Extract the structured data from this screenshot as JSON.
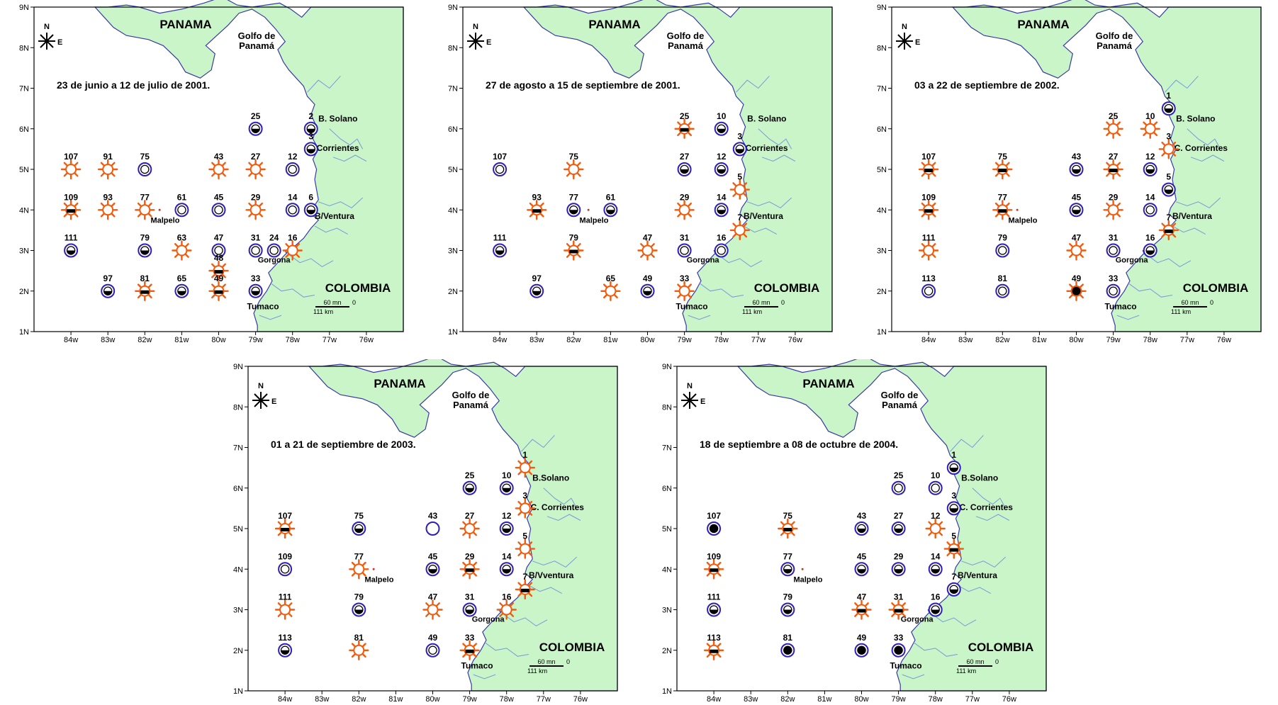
{
  "colors": {
    "land": "#c9f5c9",
    "coast": "#3a3aa8",
    "river": "#7a9ad8",
    "sun": "#f25a0c",
    "circle": "#2d1fb8",
    "frame": "#000000"
  },
  "axes": {
    "lat_labels": [
      "1N",
      "2N",
      "3N",
      "4N",
      "5N",
      "6N",
      "7N",
      "8N",
      "9N"
    ],
    "lon_labels": [
      "84w",
      "83w",
      "82w",
      "81w",
      "80w",
      "79w",
      "78w",
      "77w",
      "76w"
    ]
  },
  "places": {
    "panama": "PANAMA",
    "golfo": "Golfo de",
    "panama_gulf": "Panamá",
    "colombia": "COLOMBIA",
    "malpelo": "Malpelo",
    "gorgona": "Gorgona",
    "tumaco": "Tumaco"
  },
  "compass": {
    "north": "N",
    "east": "E"
  },
  "scale": {
    "nm": "60 mn",
    "zero": "0",
    "km": "111 km"
  },
  "legend_icons": {
    "sun": "sun-icon",
    "circle_empty": "empty-circle-icon",
    "circle_half": "half-filled-circle-icon",
    "circle_full": "filled-circle-icon"
  },
  "panels": [
    {
      "title": "23 de junio a 12 de julio de 2001.",
      "coast_labels": {
        "north": "B. Solano",
        "mid": "Corrientes",
        "south": "B/Ventura"
      },
      "stations": [
        {
          "id": "25",
          "lon": -79,
          "lat": 6,
          "type": "c1"
        },
        {
          "id": "2",
          "lon": -77.5,
          "lat": 6,
          "type": "c1"
        },
        {
          "id": "3",
          "lon": -77.5,
          "lat": 5.5,
          "type": "c1"
        },
        {
          "id": "107",
          "lon": -84,
          "lat": 5,
          "type": "sun"
        },
        {
          "id": "91",
          "lon": -83,
          "lat": 5,
          "type": "sun"
        },
        {
          "id": "75",
          "lon": -82,
          "lat": 5,
          "type": "c0"
        },
        {
          "id": "43",
          "lon": -80,
          "lat": 5,
          "type": "sun"
        },
        {
          "id": "27",
          "lon": -79,
          "lat": 5,
          "type": "sun"
        },
        {
          "id": "12",
          "lon": -78,
          "lat": 5,
          "type": "c0"
        },
        {
          "id": "109",
          "lon": -84,
          "lat": 4,
          "type": "sunc"
        },
        {
          "id": "93",
          "lon": -83,
          "lat": 4,
          "type": "sun"
        },
        {
          "id": "77",
          "lon": -82,
          "lat": 4,
          "type": "sun"
        },
        {
          "id": "61",
          "lon": -81,
          "lat": 4,
          "type": "c0"
        },
        {
          "id": "45",
          "lon": -80,
          "lat": 4,
          "type": "c0"
        },
        {
          "id": "29",
          "lon": -79,
          "lat": 4,
          "type": "sun"
        },
        {
          "id": "14",
          "lon": -78,
          "lat": 4,
          "type": "c0"
        },
        {
          "id": "6",
          "lon": -77.5,
          "lat": 4,
          "type": "c1"
        },
        {
          "id": "111",
          "lon": -84,
          "lat": 3,
          "type": "c1"
        },
        {
          "id": "79",
          "lon": -82,
          "lat": 3,
          "type": "c1"
        },
        {
          "id": "63",
          "lon": -81,
          "lat": 3,
          "type": "sun"
        },
        {
          "id": "47",
          "lon": -80,
          "lat": 3,
          "type": "c0"
        },
        {
          "id": "31",
          "lon": -79,
          "lat": 3,
          "type": "c0"
        },
        {
          "id": "24",
          "lon": -78.5,
          "lat": 3,
          "type": "c0"
        },
        {
          "id": "16",
          "lon": -78,
          "lat": 3,
          "type": "sun"
        },
        {
          "id": "48",
          "lon": -80,
          "lat": 2.5,
          "type": "sunc"
        },
        {
          "id": "97",
          "lon": -83,
          "lat": 2,
          "type": "c1"
        },
        {
          "id": "81",
          "lon": -82,
          "lat": 2,
          "type": "sunc"
        },
        {
          "id": "65",
          "lon": -81,
          "lat": 2,
          "type": "c1"
        },
        {
          "id": "49",
          "lon": -80,
          "lat": 2,
          "type": "sunc"
        },
        {
          "id": "33",
          "lon": -79,
          "lat": 2,
          "type": "c1"
        }
      ]
    },
    {
      "title": "27 de agosto a 15 de septiembre de 2001.",
      "coast_labels": {
        "north": "B. Solano",
        "mid": "Corrientes",
        "south": "B/Ventura"
      },
      "stations": [
        {
          "id": "25",
          "lon": -79,
          "lat": 6,
          "type": "sunc"
        },
        {
          "id": "10",
          "lon": -78,
          "lat": 6,
          "type": "c1"
        },
        {
          "id": "3",
          "lon": -77.5,
          "lat": 5.5,
          "type": "c1"
        },
        {
          "id": "107",
          "lon": -84,
          "lat": 5,
          "type": "c0"
        },
        {
          "id": "75",
          "lon": -82,
          "lat": 5,
          "type": "sun"
        },
        {
          "id": "27",
          "lon": -79,
          "lat": 5,
          "type": "c1"
        },
        {
          "id": "12",
          "lon": -78,
          "lat": 5,
          "type": "c1"
        },
        {
          "id": "5",
          "lon": -77.5,
          "lat": 4.5,
          "type": "sun"
        },
        {
          "id": "93",
          "lon": -83,
          "lat": 4,
          "type": "sunc"
        },
        {
          "id": "77",
          "lon": -82,
          "lat": 4,
          "type": "c1"
        },
        {
          "id": "61",
          "lon": -81,
          "lat": 4,
          "type": "c1"
        },
        {
          "id": "29",
          "lon": -79,
          "lat": 4,
          "type": "sun"
        },
        {
          "id": "14",
          "lon": -78,
          "lat": 4,
          "type": "c1"
        },
        {
          "id": "7",
          "lon": -77.5,
          "lat": 3.5,
          "type": "sun"
        },
        {
          "id": "111",
          "lon": -84,
          "lat": 3,
          "type": "c1"
        },
        {
          "id": "79",
          "lon": -82,
          "lat": 3,
          "type": "sunc"
        },
        {
          "id": "47",
          "lon": -80,
          "lat": 3,
          "type": "sun"
        },
        {
          "id": "31",
          "lon": -79,
          "lat": 3,
          "type": "c0"
        },
        {
          "id": "16",
          "lon": -78,
          "lat": 3,
          "type": "c0"
        },
        {
          "id": "97",
          "lon": -83,
          "lat": 2,
          "type": "c1"
        },
        {
          "id": "65",
          "lon": -81,
          "lat": 2,
          "type": "sun"
        },
        {
          "id": "49",
          "lon": -80,
          "lat": 2,
          "type": "c1"
        },
        {
          "id": "33",
          "lon": -79,
          "lat": 2,
          "type": "sun"
        }
      ]
    },
    {
      "title": "03 a 22 de septiembre de 2002.",
      "coast_labels": {
        "north": "B. Solano",
        "mid": "C. Corrientes",
        "south": "B/Ventura"
      },
      "stations": [
        {
          "id": "1",
          "lon": -77.5,
          "lat": 6.5,
          "type": "c1"
        },
        {
          "id": "25",
          "lon": -79,
          "lat": 6,
          "type": "sun"
        },
        {
          "id": "10",
          "lon": -78,
          "lat": 6,
          "type": "sun"
        },
        {
          "id": "3",
          "lon": -77.5,
          "lat": 5.5,
          "type": "sun"
        },
        {
          "id": "107",
          "lon": -84,
          "lat": 5,
          "type": "sunc"
        },
        {
          "id": "75",
          "lon": -82,
          "lat": 5,
          "type": "sunc"
        },
        {
          "id": "43",
          "lon": -80,
          "lat": 5,
          "type": "c1"
        },
        {
          "id": "27",
          "lon": -79,
          "lat": 5,
          "type": "sunc"
        },
        {
          "id": "12",
          "lon": -78,
          "lat": 5,
          "type": "c1"
        },
        {
          "id": "5",
          "lon": -77.5,
          "lat": 4.5,
          "type": "c1"
        },
        {
          "id": "109",
          "lon": -84,
          "lat": 4,
          "type": "sunc"
        },
        {
          "id": "77",
          "lon": -82,
          "lat": 4,
          "type": "sunc"
        },
        {
          "id": "45",
          "lon": -80,
          "lat": 4,
          "type": "c1"
        },
        {
          "id": "29",
          "lon": -79,
          "lat": 4,
          "type": "sun"
        },
        {
          "id": "14",
          "lon": -78,
          "lat": 4,
          "type": "c0"
        },
        {
          "id": "7",
          "lon": -77.5,
          "lat": 3.5,
          "type": "sunc"
        },
        {
          "id": "111",
          "lon": -84,
          "lat": 3,
          "type": "sun"
        },
        {
          "id": "79",
          "lon": -82,
          "lat": 3,
          "type": "c0"
        },
        {
          "id": "47",
          "lon": -80,
          "lat": 3,
          "type": "sun"
        },
        {
          "id": "31",
          "lon": -79,
          "lat": 3,
          "type": "c0"
        },
        {
          "id": "16",
          "lon": -78,
          "lat": 3,
          "type": "c1"
        },
        {
          "id": "113",
          "lon": -84,
          "lat": 2,
          "type": "c0"
        },
        {
          "id": "81",
          "lon": -82,
          "lat": 2,
          "type": "c0"
        },
        {
          "id": "49",
          "lon": -80,
          "lat": 2,
          "type": "sunf"
        },
        {
          "id": "33",
          "lon": -79,
          "lat": 2,
          "type": "c0"
        }
      ]
    },
    {
      "title": "01 a 21 de septiembre de 2003.",
      "coast_labels": {
        "north": "B.Solano",
        "mid": "C. Corrientes",
        "south": "B/Vventura"
      },
      "stations": [
        {
          "id": "1",
          "lon": -77.5,
          "lat": 6.5,
          "type": "sun"
        },
        {
          "id": "25",
          "lon": -79,
          "lat": 6,
          "type": "c1"
        },
        {
          "id": "10",
          "lon": -78,
          "lat": 6,
          "type": "c1"
        },
        {
          "id": "3",
          "lon": -77.5,
          "lat": 5.5,
          "type": "sun"
        },
        {
          "id": "107",
          "lon": -84,
          "lat": 5,
          "type": "sunc"
        },
        {
          "id": "75",
          "lon": -82,
          "lat": 5,
          "type": "c1"
        },
        {
          "id": "43",
          "lon": -80,
          "lat": 5,
          "type": "ce"
        },
        {
          "id": "27",
          "lon": -79,
          "lat": 5,
          "type": "sun"
        },
        {
          "id": "12",
          "lon": -78,
          "lat": 5,
          "type": "c1"
        },
        {
          "id": "5",
          "lon": -77.5,
          "lat": 4.5,
          "type": "sun"
        },
        {
          "id": "109",
          "lon": -84,
          "lat": 4,
          "type": "c0"
        },
        {
          "id": "77",
          "lon": -82,
          "lat": 4,
          "type": "sun"
        },
        {
          "id": "45",
          "lon": -80,
          "lat": 4,
          "type": "c1"
        },
        {
          "id": "29",
          "lon": -79,
          "lat": 4,
          "type": "sunc"
        },
        {
          "id": "14",
          "lon": -78,
          "lat": 4,
          "type": "c1"
        },
        {
          "id": "7",
          "lon": -77.5,
          "lat": 3.5,
          "type": "sunc"
        },
        {
          "id": "111",
          "lon": -84,
          "lat": 3,
          "type": "sun"
        },
        {
          "id": "79",
          "lon": -82,
          "lat": 3,
          "type": "c1"
        },
        {
          "id": "47",
          "lon": -80,
          "lat": 3,
          "type": "sun"
        },
        {
          "id": "31",
          "lon": -79,
          "lat": 3,
          "type": "c1"
        },
        {
          "id": "16",
          "lon": -78,
          "lat": 3,
          "type": "sun"
        },
        {
          "id": "113",
          "lon": -84,
          "lat": 2,
          "type": "c1"
        },
        {
          "id": "81",
          "lon": -82,
          "lat": 2,
          "type": "sun"
        },
        {
          "id": "49",
          "lon": -80,
          "lat": 2,
          "type": "c0"
        },
        {
          "id": "33",
          "lon": -79,
          "lat": 2,
          "type": "sunc"
        }
      ]
    },
    {
      "title": "18 de septiembre a 08 de octubre de 2004.",
      "coast_labels": {
        "north": "B.Solano",
        "mid": "C. Corrientes",
        "south": "B/Ventura"
      },
      "stations": [
        {
          "id": "1",
          "lon": -77.5,
          "lat": 6.5,
          "type": "c1"
        },
        {
          "id": "25",
          "lon": -79,
          "lat": 6,
          "type": "c0"
        },
        {
          "id": "10",
          "lon": -78,
          "lat": 6,
          "type": "c0"
        },
        {
          "id": "3",
          "lon": -77.5,
          "lat": 5.5,
          "type": "c1"
        },
        {
          "id": "107",
          "lon": -84,
          "lat": 5,
          "type": "c2"
        },
        {
          "id": "75",
          "lon": -82,
          "lat": 5,
          "type": "sunc"
        },
        {
          "id": "43",
          "lon": -80,
          "lat": 5,
          "type": "c1"
        },
        {
          "id": "27",
          "lon": -79,
          "lat": 5,
          "type": "c1"
        },
        {
          "id": "12",
          "lon": -78,
          "lat": 5,
          "type": "sun"
        },
        {
          "id": "5",
          "lon": -77.5,
          "lat": 4.5,
          "type": "sunc"
        },
        {
          "id": "109",
          "lon": -84,
          "lat": 4,
          "type": "sunc"
        },
        {
          "id": "77",
          "lon": -82,
          "lat": 4,
          "type": "c1"
        },
        {
          "id": "45",
          "lon": -80,
          "lat": 4,
          "type": "c1"
        },
        {
          "id": "29",
          "lon": -79,
          "lat": 4,
          "type": "c1"
        },
        {
          "id": "14",
          "lon": -78,
          "lat": 4,
          "type": "c1"
        },
        {
          "id": "7",
          "lon": -77.5,
          "lat": 3.5,
          "type": "c1"
        },
        {
          "id": "111",
          "lon": -84,
          "lat": 3,
          "type": "c1"
        },
        {
          "id": "79",
          "lon": -82,
          "lat": 3,
          "type": "c1"
        },
        {
          "id": "47",
          "lon": -80,
          "lat": 3,
          "type": "sunc"
        },
        {
          "id": "31",
          "lon": -79,
          "lat": 3,
          "type": "sunc"
        },
        {
          "id": "16",
          "lon": -78,
          "lat": 3,
          "type": "c1"
        },
        {
          "id": "113",
          "lon": -84,
          "lat": 2,
          "type": "sunc"
        },
        {
          "id": "81",
          "lon": -82,
          "lat": 2,
          "type": "c2"
        },
        {
          "id": "49",
          "lon": -80,
          "lat": 2,
          "type": "c2"
        },
        {
          "id": "33",
          "lon": -79,
          "lat": 2,
          "type": "c2"
        }
      ]
    }
  ]
}
